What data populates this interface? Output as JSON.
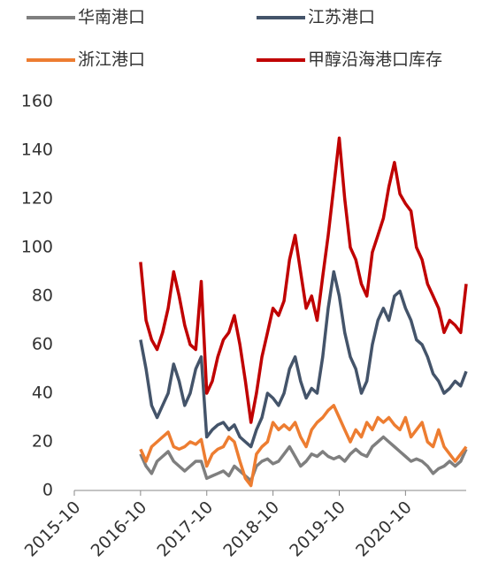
{
  "chart_data": {
    "type": "line",
    "x": [
      "2016-10",
      "2016-11",
      "2016-12",
      "2017-01",
      "2017-02",
      "2017-03",
      "2017-04",
      "2017-05",
      "2017-06",
      "2017-07",
      "2017-08",
      "2017-09",
      "2017-10",
      "2017-11",
      "2017-12",
      "2018-01",
      "2018-02",
      "2018-03",
      "2018-04",
      "2018-05",
      "2018-06",
      "2018-07",
      "2018-08",
      "2018-09",
      "2018-10",
      "2018-11",
      "2018-12",
      "2019-01",
      "2019-02",
      "2019-03",
      "2019-04",
      "2019-05",
      "2019-06",
      "2019-07",
      "2019-08",
      "2019-09",
      "2019-10",
      "2019-11",
      "2019-12",
      "2020-01",
      "2020-02",
      "2020-03",
      "2020-04",
      "2020-05",
      "2020-06",
      "2020-07",
      "2020-08",
      "2020-09",
      "2020-10",
      "2020-11",
      "2020-12",
      "2021-01",
      "2021-02",
      "2021-03",
      "2021-04",
      "2021-05",
      "2021-06",
      "2021-07",
      "2021-08",
      "2021-09"
    ],
    "series": [
      {
        "name": "华南港口",
        "color": "#7f7f7f",
        "values": [
          15,
          10,
          7,
          12,
          14,
          16,
          12,
          10,
          8,
          10,
          12,
          12,
          5,
          6,
          7,
          8,
          6,
          10,
          8,
          6,
          4,
          10,
          12,
          13,
          11,
          12,
          15,
          18,
          14,
          10,
          12,
          15,
          14,
          16,
          14,
          13,
          14,
          12,
          15,
          17,
          15,
          14,
          18,
          20,
          22,
          20,
          18,
          16,
          14,
          12,
          13,
          12,
          10,
          7,
          9,
          10,
          12,
          10,
          12,
          17
        ]
      },
      {
        "name": "江苏港口",
        "color": "#44546a",
        "values": [
          62,
          50,
          35,
          30,
          35,
          40,
          52,
          45,
          35,
          40,
          50,
          55,
          22,
          25,
          27,
          28,
          25,
          27,
          22,
          20,
          18,
          25,
          30,
          40,
          38,
          35,
          40,
          50,
          55,
          45,
          38,
          42,
          40,
          55,
          75,
          90,
          80,
          65,
          55,
          50,
          40,
          45,
          60,
          70,
          75,
          70,
          80,
          82,
          75,
          70,
          62,
          60,
          55,
          48,
          45,
          40,
          42,
          45,
          43,
          49
        ]
      },
      {
        "name": "浙江港口",
        "color": "#ed7d31",
        "values": [
          17,
          12,
          18,
          20,
          22,
          24,
          18,
          17,
          18,
          20,
          19,
          21,
          10,
          15,
          17,
          18,
          22,
          20,
          12,
          5,
          2,
          15,
          18,
          20,
          28,
          25,
          27,
          25,
          28,
          22,
          18,
          25,
          28,
          30,
          33,
          35,
          30,
          25,
          20,
          25,
          22,
          28,
          25,
          30,
          28,
          30,
          27,
          25,
          30,
          22,
          25,
          28,
          20,
          18,
          25,
          18,
          15,
          12,
          15,
          18
        ]
      },
      {
        "name": "甲醇沿海港口库存",
        "color": "#c00000",
        "values": [
          94,
          70,
          62,
          58,
          65,
          75,
          90,
          80,
          68,
          60,
          58,
          86,
          40,
          45,
          55,
          62,
          65,
          72,
          60,
          45,
          28,
          40,
          55,
          65,
          75,
          72,
          78,
          95,
          105,
          90,
          75,
          80,
          70,
          88,
          105,
          125,
          145,
          120,
          100,
          95,
          85,
          80,
          98,
          105,
          112,
          125,
          135,
          122,
          118,
          115,
          100,
          95,
          85,
          80,
          75,
          65,
          70,
          68,
          65,
          85
        ]
      }
    ],
    "xlim": [
      "2015-10",
      "2021-09"
    ],
    "xticks": [
      "2015-10",
      "2016-10",
      "2017-10",
      "2018-10",
      "2019-10",
      "2020-10"
    ],
    "ylim": [
      0,
      160
    ],
    "yticks": [
      0,
      20,
      40,
      60,
      80,
      100,
      120,
      140,
      160
    ]
  }
}
